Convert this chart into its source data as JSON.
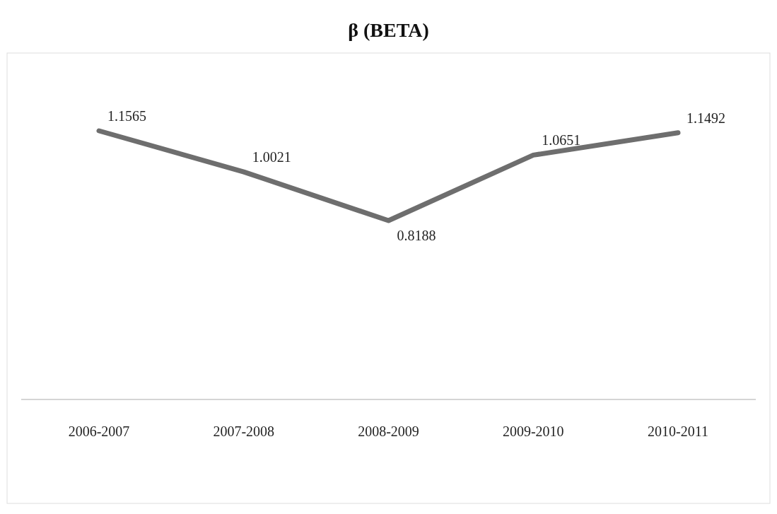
{
  "chart_data": {
    "type": "line",
    "title": "β (BETA)",
    "categories": [
      "2006-2007",
      "2007-2008",
      "2008-2009",
      "2009-2010",
      "2010-2011"
    ],
    "series": [
      {
        "color": "#6e6e6e",
        "values": [
          1.1565,
          1.0021,
          0.8188,
          1.0651,
          1.1492
        ]
      }
    ],
    "tick_labels": "x",
    "data_labels": true,
    "marker": "none",
    "line_style": "solid"
  }
}
